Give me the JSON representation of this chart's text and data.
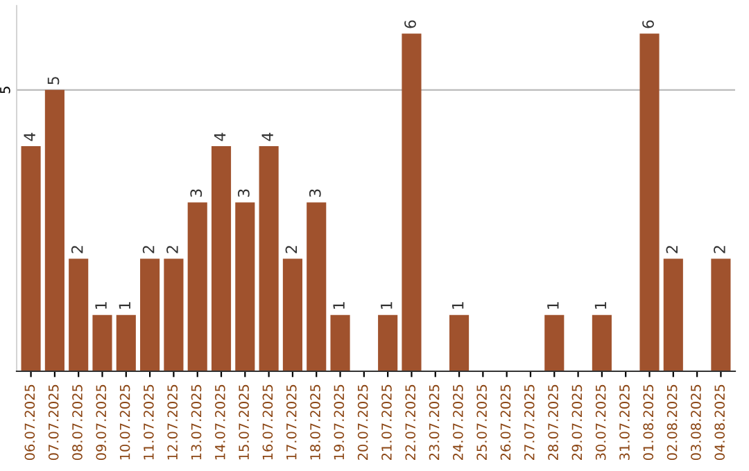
{
  "chart_data": {
    "type": "bar",
    "categories": [
      "06.07.2025",
      "07.07.2025",
      "08.07.2025",
      "09.07.2025",
      "10.07.2025",
      "11.07.2025",
      "12.07.2025",
      "13.07.2025",
      "14.07.2025",
      "15.07.2025",
      "16.07.2025",
      "17.07.2025",
      "18.07.2025",
      "19.07.2025",
      "20.07.2025",
      "21.07.2025",
      "22.07.2025",
      "23.07.2025",
      "24.07.2025",
      "25.07.2025",
      "26.07.2025",
      "27.07.2025",
      "28.07.2025",
      "29.07.2025",
      "30.07.2025",
      "31.07.2025",
      "01.08.2025",
      "02.08.2025",
      "03.08.2025",
      "04.08.2025"
    ],
    "values": [
      4,
      5,
      2,
      1,
      1,
      2,
      2,
      3,
      4,
      3,
      4,
      2,
      3,
      1,
      null,
      1,
      6,
      null,
      1,
      null,
      null,
      null,
      1,
      null,
      1,
      null,
      6,
      2,
      null,
      2
    ],
    "color": "#a0522d",
    "ylim": [
      0,
      6.5
    ],
    "yticks": [
      5
    ],
    "grid": "y",
    "data_labels": true
  }
}
